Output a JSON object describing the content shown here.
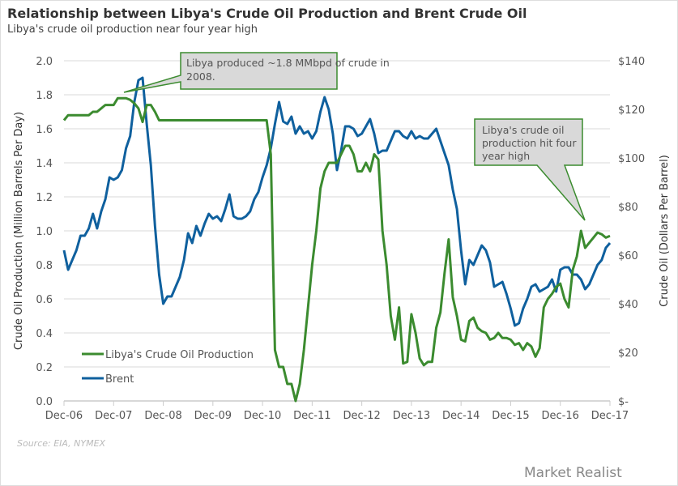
{
  "header": {
    "title": "Relationship between Libya's Crude Oil Production and Brent Crude Oil",
    "subtitle": "Libya's crude oil production near four year high"
  },
  "footer": {
    "source": "Source: EIA, NYMEX",
    "logo": "Market Realist"
  },
  "colors": {
    "production": "#3b8b2f",
    "brent": "#0f609e",
    "callout_fill": "#d9d9d9",
    "callout_border": "#3b8b2f",
    "grid": "#e6e6e6"
  },
  "chart_data": {
    "type": "line",
    "title": "Relationship between Libya's Crude Oil Production and Brent Crude Oil",
    "subtitle": "Libya's crude oil production near four year high",
    "x_frequency": "monthly",
    "x_start": "Dec-06",
    "x_end": "Dec-17",
    "x_ticks": [
      "Dec-06",
      "Dec-07",
      "Dec-08",
      "Dec-09",
      "Dec-10",
      "Dec-11",
      "Dec-12",
      "Dec-13",
      "Dec-14",
      "Dec-15",
      "Dec-16",
      "Dec-17"
    ],
    "ylabel_left": "Crude Oil Production  (Million Barrels Per Day)",
    "ylabel_right": "Crude Oil (Dollars Per Barrel)",
    "ylim_left": [
      0,
      2.0
    ],
    "ylim_right": [
      0,
      140
    ],
    "left_ticks": [
      "0.0",
      "0.2",
      "0.4",
      "0.6",
      "0.8",
      "1.0",
      "1.2",
      "1.4",
      "1.6",
      "1.8",
      "2.0"
    ],
    "right_ticks": [
      "$-",
      "$20",
      "$40",
      "$60",
      "$80",
      "$100",
      "$120",
      "$140"
    ],
    "grid": true,
    "legend": "bottom-left",
    "series": [
      {
        "name": "Libya's Crude Oil Production",
        "axis": "left",
        "values": [
          1.65,
          1.68,
          1.68,
          1.68,
          1.68,
          1.68,
          1.68,
          1.7,
          1.7,
          1.72,
          1.74,
          1.74,
          1.74,
          1.78,
          1.78,
          1.78,
          1.77,
          1.75,
          1.72,
          1.64,
          1.74,
          1.74,
          1.7,
          1.65,
          1.65,
          1.65,
          1.65,
          1.65,
          1.65,
          1.65,
          1.65,
          1.65,
          1.65,
          1.65,
          1.65,
          1.65,
          1.65,
          1.65,
          1.65,
          1.65,
          1.65,
          1.65,
          1.65,
          1.65,
          1.65,
          1.65,
          1.65,
          1.65,
          1.65,
          1.65,
          1.45,
          0.3,
          0.2,
          0.2,
          0.1,
          0.1,
          0.0,
          0.1,
          0.3,
          0.55,
          0.8,
          1.0,
          1.25,
          1.35,
          1.4,
          1.4,
          1.4,
          1.45,
          1.5,
          1.5,
          1.45,
          1.35,
          1.35,
          1.4,
          1.35,
          1.45,
          1.42,
          1.0,
          0.8,
          0.5,
          0.36,
          0.55,
          0.22,
          0.23,
          0.51,
          0.4,
          0.25,
          0.21,
          0.23,
          0.23,
          0.43,
          0.52,
          0.75,
          0.95,
          0.61,
          0.5,
          0.36,
          0.35,
          0.47,
          0.49,
          0.43,
          0.41,
          0.4,
          0.36,
          0.37,
          0.4,
          0.37,
          0.37,
          0.36,
          0.33,
          0.34,
          0.3,
          0.34,
          0.32,
          0.26,
          0.31,
          0.55,
          0.6,
          0.63,
          0.67,
          0.69,
          0.6,
          0.55,
          0.77,
          0.85,
          1.0,
          0.9,
          0.93,
          0.96,
          0.99,
          0.98,
          0.96,
          0.97
        ]
      },
      {
        "name": "Brent",
        "axis": "right",
        "values": [
          62,
          54,
          58,
          62,
          68,
          68,
          71,
          77,
          71,
          78,
          83,
          92,
          91,
          92,
          95,
          104,
          109,
          123,
          132,
          133,
          114,
          97,
          72,
          52,
          40,
          43,
          43,
          47,
          51,
          58,
          69,
          65,
          72,
          68,
          73,
          77,
          75,
          76,
          74,
          79,
          85,
          76,
          75,
          75,
          76,
          78,
          83,
          86,
          92,
          97,
          104,
          114,
          123,
          115,
          114,
          117,
          110,
          113,
          110,
          111,
          108,
          111,
          119,
          125,
          120,
          110,
          95,
          103,
          113,
          113,
          112,
          109,
          110,
          113,
          116,
          110,
          102,
          103,
          103,
          107,
          111,
          111,
          109,
          108,
          111,
          108,
          109,
          108,
          108,
          110,
          112,
          107,
          102,
          97,
          87,
          79,
          62,
          48,
          58,
          56,
          60,
          64,
          62,
          57,
          47,
          48,
          49,
          44,
          38,
          31,
          32,
          38,
          42,
          47,
          48,
          45,
          46,
          47,
          50,
          45,
          54,
          55,
          55,
          52,
          52,
          50,
          46,
          48,
          52,
          56,
          58,
          63,
          65
        ]
      }
    ],
    "annotations": [
      "Libya produced ~1.8 MMbpd of crude in 2008.",
      "Libya's crude oil production hit four year high"
    ]
  }
}
